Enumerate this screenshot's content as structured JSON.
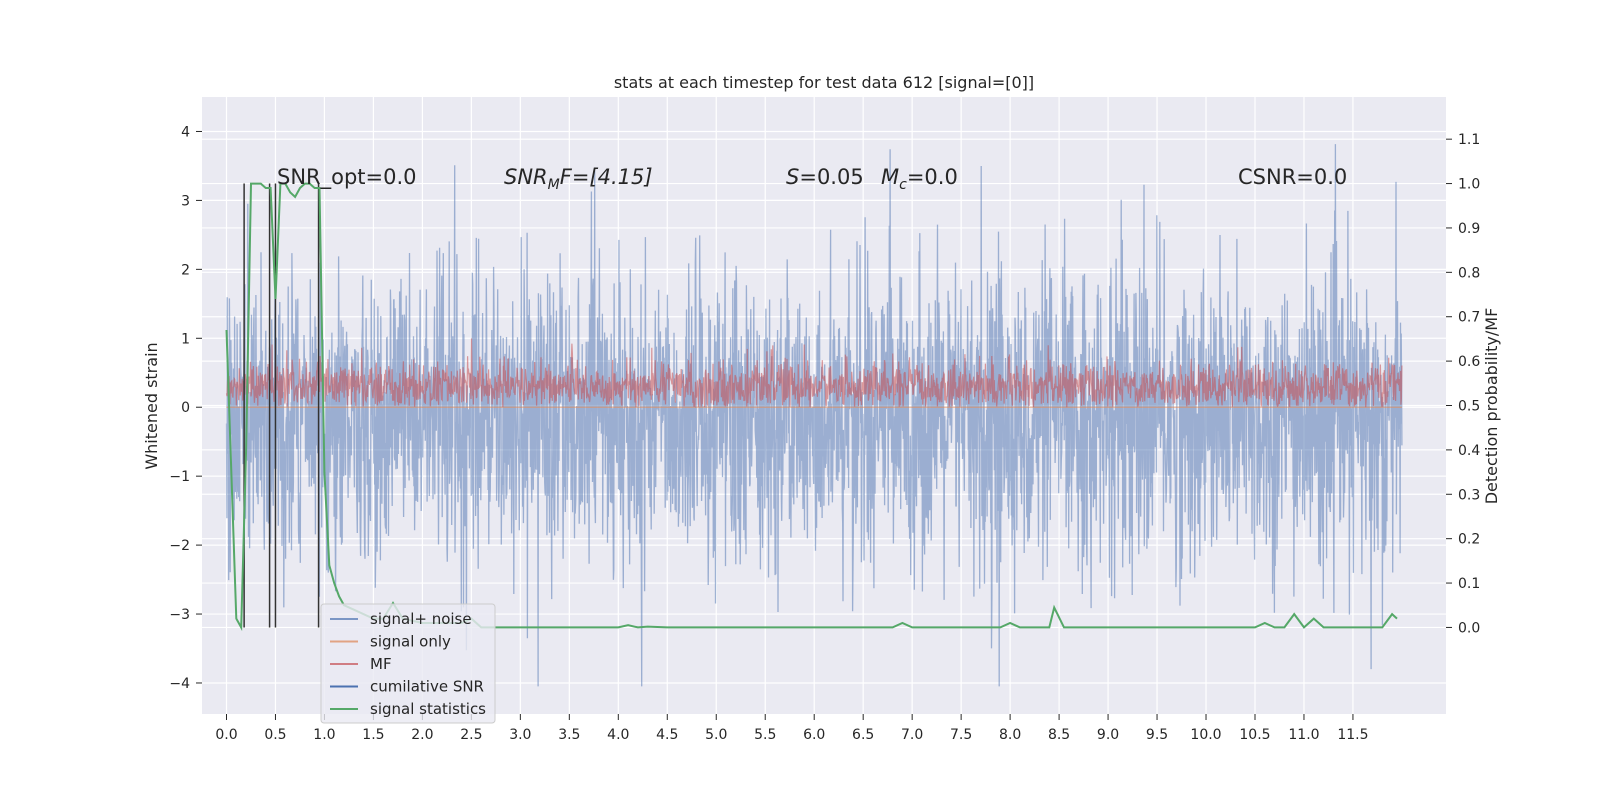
{
  "chart_data": {
    "type": "line",
    "title": "stats at each timestep for test data 612 [signal=[0]]",
    "xlabel": "",
    "ylabel": "Whitened strain",
    "y2label": "Detection probability/MF",
    "xlim": [
      -0.25,
      12.45
    ],
    "ylim": [
      -4.45,
      4.5
    ],
    "y2lim": [
      -0.195,
      1.195
    ],
    "x_ticks": [
      "0.0",
      "0.5",
      "1.0",
      "1.5",
      "2.0",
      "2.5",
      "3.0",
      "3.5",
      "4.0",
      "4.5",
      "5.0",
      "5.5",
      "6.0",
      "6.5",
      "7.0",
      "7.5",
      "8.0",
      "8.5",
      "9.0",
      "9.5",
      "10.0",
      "10.5",
      "11.0",
      "11.5"
    ],
    "y_ticks": [
      "4",
      "3",
      "2",
      "1",
      "0",
      "−1",
      "−2",
      "−3",
      "−4"
    ],
    "y2_ticks": [
      "1.1",
      "1.0",
      "0.9",
      "0.8",
      "0.7",
      "0.6",
      "0.5",
      "0.4",
      "0.3",
      "0.2",
      "0.1",
      "0.0"
    ],
    "grid": true,
    "legend_position": "lower-left",
    "annotations": {
      "snr_opt": "SNR_opt=0.0",
      "snr_mf_sym": "SNR",
      "snr_mf_sub": "M",
      "snr_mf_rest": "F=[4.15]",
      "s_sym": "S",
      "s_rest": "=0.05",
      "mc_sym": "M",
      "mc_sub": "c",
      "mc_rest": "=0.0",
      "csnr": "CSNR=0.0"
    },
    "series": [
      {
        "name": "signal+ noise",
        "color": "#4c72b0",
        "style": "dense-noise",
        "x_range": [
          0.0,
          12.0
        ],
        "mean": -0.2,
        "approx_std": 1.0,
        "min": -4.05,
        "max": 4.1
      },
      {
        "name": "signal only",
        "color": "#dd8452",
        "style": "flat",
        "x_range": [
          0.0,
          12.0
        ],
        "value": 0.0
      },
      {
        "name": "MF",
        "color": "#c44e52",
        "style": "dense-noise-positive",
        "x_range": [
          0.0,
          12.0
        ],
        "min": 0.0,
        "max": 1.0,
        "typical": 0.3
      },
      {
        "name": "cumilative SNR",
        "color": "#4c72b0",
        "style": "line",
        "x": [],
        "y": []
      },
      {
        "name": "signal statistics",
        "color": "#55a868",
        "style": "line",
        "axis": "right",
        "x": [
          0.0,
          0.1,
          0.15,
          0.2,
          0.25,
          0.3,
          0.35,
          0.4,
          0.45,
          0.5,
          0.55,
          0.6,
          0.65,
          0.7,
          0.75,
          0.8,
          0.85,
          0.9,
          0.95,
          1.0,
          1.05,
          1.1,
          1.15,
          1.2,
          1.5,
          1.6,
          1.7,
          1.8,
          2.0,
          2.2,
          2.4,
          2.5,
          2.6,
          2.8,
          3.0,
          3.5,
          4.0,
          4.1,
          4.2,
          4.3,
          4.5,
          5.0,
          5.5,
          6.0,
          6.5,
          6.8,
          6.9,
          7.0,
          7.1,
          7.3,
          7.5,
          7.9,
          8.0,
          8.1,
          8.3,
          8.4,
          8.45,
          8.55,
          8.7,
          9.0,
          9.5,
          10.0,
          10.3,
          10.5,
          10.6,
          10.7,
          10.8,
          10.9,
          11.0,
          11.1,
          11.2,
          11.5,
          11.8,
          11.9,
          11.95
        ],
        "y": [
          0.67,
          0.02,
          0.0,
          0.4,
          1.0,
          1.0,
          1.0,
          0.99,
          0.99,
          0.74,
          1.0,
          1.0,
          0.98,
          0.97,
          0.99,
          1.0,
          1.0,
          0.99,
          0.99,
          0.35,
          0.14,
          0.1,
          0.07,
          0.05,
          0.02,
          0.02,
          0.055,
          0.02,
          0.01,
          0.01,
          0.01,
          0.02,
          0.0,
          0.0,
          0.0,
          0.0,
          0.0,
          0.005,
          0.0,
          0.002,
          0.0,
          0.0,
          0.0,
          0.0,
          0.0,
          0.0,
          0.01,
          0.0,
          0.0,
          0.0,
          0.0,
          0.0,
          0.01,
          0.0,
          0.0,
          0.0,
          0.045,
          0.0,
          0.0,
          0.0,
          0.0,
          0.0,
          0.0,
          0.0,
          0.01,
          0.0,
          0.0,
          0.03,
          0.0,
          0.02,
          0.0,
          0.0,
          0.0,
          0.03,
          0.02
        ]
      }
    ],
    "vertical_lines": {
      "color": "#333333",
      "x": [
        0.18,
        0.44,
        0.5,
        0.94
      ],
      "y2_from": 0.0,
      "y2_to": 1.0
    }
  }
}
